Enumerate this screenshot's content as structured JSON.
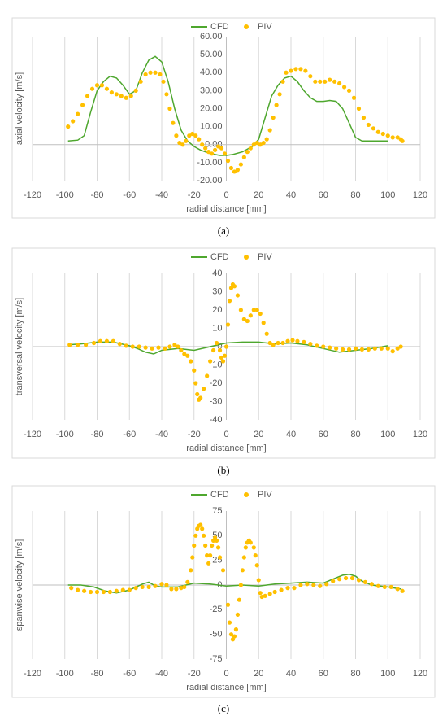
{
  "chart_data": [
    {
      "type": "line",
      "caption": "(a)",
      "xlabel": "radial distance [mm]",
      "ylabel": "axial velocity [m/s]",
      "xlim": [
        -120,
        120
      ],
      "xticks": [
        -120,
        -100,
        -80,
        -60,
        -40,
        -20,
        0,
        20,
        40,
        60,
        80,
        100,
        120
      ],
      "ylim": [
        -20,
        60
      ],
      "yticks": [
        {
          "value": -20,
          "label": "-20.00"
        },
        {
          "value": -10,
          "label": "-10.00"
        },
        {
          "value": 0,
          "label": "0.00"
        },
        {
          "value": 10,
          "label": "10.00"
        },
        {
          "value": 20,
          "label": "20.00"
        },
        {
          "value": 30,
          "label": "30.00"
        },
        {
          "value": 40,
          "label": "40.00"
        },
        {
          "value": 50,
          "label": "50.00"
        },
        {
          "value": 60,
          "label": "60.00"
        }
      ],
      "grid": "x",
      "legend": "top",
      "series": [
        {
          "name": "CFD",
          "color": "#4ea72e",
          "style": "line",
          "x": [
            -98,
            -92,
            -88,
            -84,
            -80,
            -76,
            -72,
            -68,
            -64,
            -60,
            -56,
            -52,
            -48,
            -44,
            -40,
            -36,
            -32,
            -28,
            -24,
            -20,
            -16,
            -10,
            -4,
            0,
            4,
            10,
            16,
            20,
            24,
            28,
            32,
            36,
            40,
            44,
            48,
            52,
            56,
            60,
            64,
            68,
            72,
            76,
            80,
            84,
            90,
            100
          ],
          "values": [
            2,
            2.5,
            5,
            18,
            30,
            35,
            38,
            37,
            33,
            28,
            30,
            40,
            47,
            49,
            46,
            35,
            20,
            8,
            2,
            -1,
            -3,
            -5,
            -6,
            -6,
            -5.5,
            -4,
            -1,
            3,
            15,
            27,
            33,
            37,
            38,
            35,
            30,
            26,
            24,
            24,
            24.5,
            24,
            20,
            12,
            4,
            2,
            2,
            2
          ]
        },
        {
          "name": "PIV",
          "color": "#ffc000",
          "style": "markers",
          "x": [
            -98,
            -95,
            -92,
            -89,
            -86,
            -83,
            -80,
            -77,
            -74,
            -71,
            -68,
            -65,
            -62,
            -59,
            -56,
            -53,
            -50,
            -47,
            -44,
            -41,
            -39,
            -37,
            -35,
            -33,
            -31,
            -29,
            -27,
            -25,
            -23,
            -21,
            -19,
            -17,
            -15,
            -13,
            -11,
            -9,
            -7,
            -5,
            -3,
            -1,
            1,
            3,
            5,
            7,
            9,
            11,
            13,
            15,
            17,
            19,
            21,
            23,
            25,
            27,
            29,
            31,
            33,
            35,
            37,
            40,
            43,
            46,
            49,
            52,
            55,
            58,
            61,
            64,
            67,
            70,
            73,
            76,
            79,
            82,
            85,
            88,
            91,
            94,
            97,
            100,
            103,
            106,
            108,
            109
          ],
          "values": [
            10,
            13,
            17,
            22,
            27,
            31,
            33,
            33,
            31,
            29,
            28,
            27,
            26,
            27,
            30,
            35,
            39,
            40,
            40,
            39,
            35,
            28,
            20,
            12,
            5,
            1,
            0,
            2,
            5,
            6,
            5,
            3,
            0,
            -2,
            -4,
            -5,
            -3,
            -1,
            -2,
            -5,
            -9,
            -13,
            -15,
            -14,
            -11,
            -7,
            -4,
            -2,
            0,
            1,
            0,
            1,
            3,
            8,
            15,
            22,
            28,
            35,
            40,
            41,
            42,
            42,
            41,
            38,
            35,
            35,
            35,
            36,
            35,
            34,
            32,
            30,
            26,
            20,
            15,
            11,
            9,
            7,
            6,
            5,
            4,
            4,
            3,
            2
          ]
        }
      ]
    },
    {
      "type": "line",
      "caption": "(b)",
      "xlabel": "radial distance [mm]",
      "ylabel": "transversal velocity [m/s]",
      "xlim": [
        -120,
        120
      ],
      "xticks": [
        -120,
        -100,
        -80,
        -60,
        -40,
        -20,
        0,
        20,
        40,
        60,
        80,
        100,
        120
      ],
      "ylim": [
        -40,
        40
      ],
      "yticks": [
        -40,
        -30,
        -20,
        -10,
        0,
        10,
        20,
        30,
        40
      ],
      "grid": "x",
      "legend": "top",
      "series": [
        {
          "name": "CFD",
          "color": "#4ea72e",
          "style": "line",
          "x": [
            -98,
            -90,
            -80,
            -70,
            -60,
            -55,
            -50,
            -45,
            -40,
            -30,
            -20,
            -10,
            0,
            10,
            20,
            30,
            40,
            50,
            60,
            70,
            80,
            90,
            100
          ],
          "values": [
            1,
            1.5,
            2.5,
            2.5,
            0.5,
            -1,
            -3,
            -4,
            -2,
            -1,
            -2,
            0,
            2,
            2.5,
            2.5,
            1.5,
            2,
            1,
            -1,
            -3,
            -2,
            -1,
            0.5
          ]
        },
        {
          "name": "PIV",
          "color": "#ffc000",
          "style": "markers",
          "x": [
            -97,
            -92,
            -87,
            -82,
            -78,
            -74,
            -70,
            -66,
            -62,
            -58,
            -54,
            -50,
            -46,
            -42,
            -38,
            -35,
            -32,
            -30,
            -28,
            -26,
            -24,
            -22,
            -20,
            -19,
            -18,
            -17,
            -16,
            -14,
            -12,
            -10,
            -8,
            -6,
            -4,
            -3,
            -2,
            -1,
            0,
            1,
            2,
            3,
            4,
            5,
            7,
            9,
            11,
            13,
            15,
            17,
            19,
            21,
            23,
            25,
            27,
            29,
            32,
            35,
            38,
            41,
            44,
            48,
            52,
            56,
            60,
            64,
            68,
            72,
            76,
            80,
            84,
            88,
            92,
            96,
            100,
            103,
            106,
            108
          ],
          "values": [
            1,
            1,
            1,
            2,
            3,
            3,
            3,
            1.5,
            0.5,
            0,
            0,
            -0.5,
            -1,
            -0.5,
            -1,
            0,
            1,
            0,
            -2,
            -4,
            -5,
            -8,
            -13,
            -20,
            -26,
            -29,
            -28,
            -23,
            -16,
            -8,
            -2,
            2,
            -2,
            -6,
            -8,
            -5,
            0,
            12,
            25,
            32,
            34,
            33,
            28,
            20,
            15,
            14,
            17,
            20,
            20,
            18,
            13,
            7,
            2,
            1,
            2,
            2,
            3,
            3.5,
            3,
            2.5,
            1.5,
            0.5,
            0,
            -0.5,
            -1,
            -1.5,
            -1.5,
            -1,
            -1.5,
            -1.5,
            -1,
            -1,
            -1,
            -2.5,
            -1,
            0
          ]
        }
      ]
    },
    {
      "type": "line",
      "caption": "(c)",
      "xlabel": "radial distance [mm]",
      "ylabel": "spanwise velocity [m/s]",
      "xlim": [
        -120,
        120
      ],
      "xticks": [
        -120,
        -100,
        -80,
        -60,
        -40,
        -20,
        0,
        20,
        40,
        60,
        80,
        100,
        120
      ],
      "ylim": [
        -75,
        75
      ],
      "yticks": [
        -75,
        -50,
        -25,
        0,
        25,
        50,
        75
      ],
      "grid": "x",
      "legend": "top",
      "series": [
        {
          "name": "CFD",
          "color": "#4ea72e",
          "style": "line",
          "x": [
            -98,
            -90,
            -82,
            -75,
            -68,
            -60,
            -52,
            -48,
            -44,
            -40,
            -30,
            -20,
            -10,
            0,
            10,
            20,
            30,
            40,
            50,
            60,
            66,
            72,
            76,
            80,
            84,
            90,
            100,
            108
          ],
          "values": [
            0,
            0,
            -2,
            -6,
            -8,
            -5,
            1,
            3,
            -1,
            -2,
            -2,
            2,
            1,
            -1,
            0,
            -1,
            1,
            2,
            3,
            2,
            6,
            10,
            11,
            9,
            4,
            0,
            -2,
            -4
          ]
        },
        {
          "name": "PIV",
          "color": "#ffc000",
          "style": "markers",
          "x": [
            -96,
            -92,
            -88,
            -84,
            -80,
            -76,
            -72,
            -68,
            -64,
            -60,
            -56,
            -52,
            -48,
            -44,
            -40,
            -37,
            -34,
            -31,
            -28,
            -26,
            -24,
            -22,
            -21,
            -20,
            -19,
            -18,
            -17,
            -16,
            -15,
            -14,
            -13,
            -12,
            -11,
            -10,
            -9,
            -8,
            -7,
            -6,
            -5,
            -4,
            -2,
            1,
            2,
            3,
            4,
            5,
            6,
            7,
            8,
            9,
            10,
            11,
            12,
            13,
            14,
            15,
            17,
            18,
            19,
            20,
            21,
            22,
            24,
            27,
            30,
            34,
            38,
            42,
            46,
            50,
            54,
            58,
            62,
            66,
            70,
            74,
            78,
            82,
            86,
            90,
            94,
            98,
            102,
            106,
            109
          ],
          "values": [
            -3,
            -5,
            -6,
            -7,
            -7,
            -7,
            -7,
            -6,
            -5,
            -5,
            -3,
            -2,
            -2,
            -1,
            1,
            0,
            -4,
            -4,
            -3,
            -2,
            3,
            15,
            28,
            40,
            50,
            57,
            60,
            61,
            57,
            50,
            40,
            30,
            22,
            30,
            40,
            45,
            48,
            45,
            38,
            28,
            15,
            -20,
            -38,
            -50,
            -55,
            -52,
            -45,
            -30,
            -15,
            0,
            15,
            28,
            38,
            43,
            45,
            43,
            38,
            30,
            20,
            5,
            -8,
            -12,
            -11,
            -9,
            -7,
            -5,
            -3,
            -3,
            0,
            1,
            0,
            -1,
            1,
            4,
            6,
            7,
            7,
            5,
            3,
            1,
            -1,
            -2,
            -2,
            -4,
            -6
          ]
        }
      ]
    }
  ]
}
